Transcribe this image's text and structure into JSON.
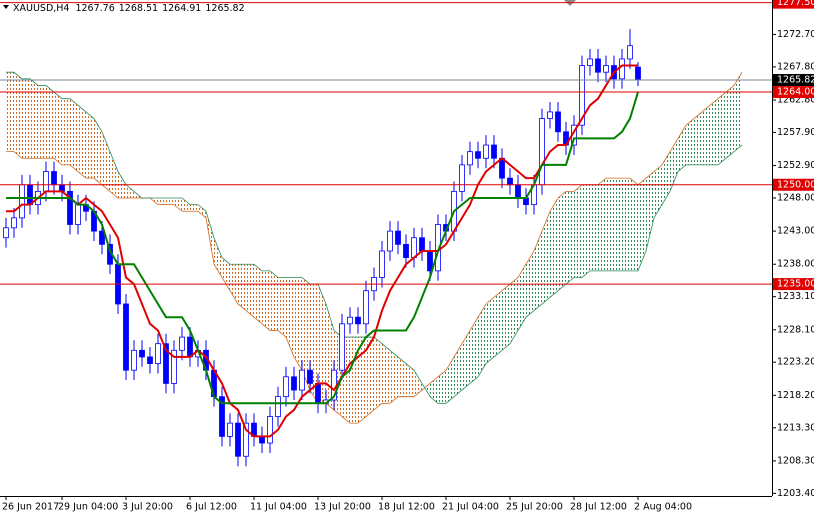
{
  "chart_data": {
    "type": "candlestick",
    "title": "XAUUSD,H4",
    "categories": [
      "26 Jun 2017",
      null,
      null,
      null,
      null,
      null,
      null,
      "29 Jun 04:00",
      null,
      null,
      null,
      null,
      null,
      null,
      null,
      "3 Jul 20:00",
      null,
      null,
      null,
      null,
      null,
      null,
      null,
      "6 Jul 12:00",
      null,
      null,
      null,
      null,
      null,
      null,
      null,
      "11 Jul 04:00",
      null,
      null,
      null,
      null,
      null,
      null,
      null,
      "13 Jul 20:00",
      null,
      null,
      null,
      null,
      null,
      null,
      null,
      "18 Jul 12:00",
      null,
      null,
      null,
      null,
      null,
      null,
      null,
      "21 Jul 04:00",
      null,
      null,
      null,
      null,
      null,
      null,
      null,
      "25 Jul 20:00",
      null,
      null,
      null,
      null,
      null,
      null,
      null,
      "28 Jul 12:00",
      null,
      null,
      null,
      null,
      null,
      null,
      null,
      "2 Aug 04:00",
      null,
      null,
      null,
      null,
      null,
      null,
      null,
      null,
      null,
      null,
      null,
      null,
      null
    ],
    "open": [
      1242,
      1243.5,
      1245,
      1250,
      1247,
      1249,
      1252,
      1250,
      1249,
      1244,
      1247,
      1246,
      1243,
      1241,
      1238,
      1232,
      1222,
      1225,
      1224,
      1223,
      1226,
      1220,
      1225,
      1227,
      1224,
      1225,
      1222,
      1218,
      1212,
      1214,
      1209,
      1214,
      1212,
      1211,
      1215,
      1218,
      1221,
      1219,
      1222,
      1220,
      1217,
      1217.5,
      1222,
      1229,
      1230,
      1229,
      1234,
      1236,
      1240,
      1243,
      1241,
      1239,
      1242,
      1240,
      1237,
      1244,
      1243,
      1249,
      1253,
      1255,
      1254,
      1256,
      1254,
      1251,
      1250,
      1248,
      1247,
      1250,
      1260,
      1261,
      1258,
      1256,
      1259,
      1268,
      1269,
      1267,
      1268,
      1266,
      1269,
      1267.76,
      null,
      null,
      null,
      null,
      null,
      null,
      null,
      null,
      null,
      null,
      null,
      null,
      null
    ],
    "high": [
      1245,
      1246.5,
      1251.5,
      1251.5,
      1250.5,
      1253.5,
      1253.5,
      1251.5,
      1250.5,
      1248.5,
      1248.5,
      1247.5,
      1244.5,
      1242.5,
      1239.5,
      1233.5,
      1226.5,
      1226.5,
      1225.5,
      1227.5,
      1227.5,
      1226.5,
      1228.5,
      1228.5,
      1226.5,
      1226.5,
      1223.5,
      1219.5,
      1215.5,
      1215.5,
      1215.5,
      1215.5,
      1213.5,
      1216.5,
      1219.5,
      1222.5,
      1222.5,
      1223.5,
      1223.5,
      1221.5,
      1219,
      1223.5,
      1230.5,
      1231.5,
      1231.5,
      1235.5,
      1237.5,
      1241.5,
      1244.5,
      1244.5,
      1242.5,
      1243.5,
      1243.5,
      1241.5,
      1245.5,
      1245.5,
      1250.5,
      1254.5,
      1256.5,
      1256.5,
      1257.5,
      1257.5,
      1255.5,
      1252.5,
      1251.5,
      1249.5,
      1251.5,
      1261.5,
      1262.5,
      1262.5,
      1259.5,
      1260.5,
      1269.5,
      1270.5,
      1270.5,
      1269.5,
      1269.5,
      1270.5,
      1273.5,
      1268.51,
      null,
      null,
      null,
      null,
      null,
      null,
      null,
      null,
      null,
      null,
      null,
      null,
      null
    ],
    "low": [
      1240.5,
      1242,
      1243.5,
      1245.5,
      1245.5,
      1247.5,
      1248.5,
      1247.5,
      1242.5,
      1242.5,
      1244.5,
      1241.5,
      1239.5,
      1236.5,
      1230.5,
      1220.5,
      1220.5,
      1222.5,
      1221.5,
      1221.5,
      1218.5,
      1218.5,
      1223.5,
      1222.5,
      1222.5,
      1220.5,
      1216.5,
      1210.5,
      1210.5,
      1207.5,
      1207.5,
      1210.5,
      1209.5,
      1209.5,
      1213.5,
      1216.5,
      1217.5,
      1217.5,
      1218.5,
      1215.5,
      1215.5,
      1216,
      1220.5,
      1227.5,
      1227.5,
      1227.5,
      1232.5,
      1234.5,
      1238.5,
      1239.5,
      1237.5,
      1237.5,
      1238.5,
      1235.5,
      1235.5,
      1241.5,
      1241.5,
      1247.5,
      1251.5,
      1252.5,
      1252.5,
      1252.5,
      1249.5,
      1248.5,
      1246.5,
      1245.5,
      1245.5,
      1248.5,
      1258.5,
      1256.5,
      1254.5,
      1254.5,
      1257.5,
      1266.5,
      1265.5,
      1265.5,
      1264.5,
      1264.5,
      1267.5,
      1264.91,
      null,
      null,
      null,
      null,
      null,
      null,
      null,
      null,
      null,
      null,
      null,
      null,
      null
    ],
    "close": [
      1243.5,
      1245,
      1250,
      1247,
      1249,
      1252,
      1250,
      1249,
      1244,
      1247,
      1246,
      1243,
      1241,
      1238,
      1232,
      1222,
      1225,
      1224,
      1223,
      1226,
      1220,
      1225,
      1227,
      1224,
      1225,
      1222,
      1218,
      1212,
      1214,
      1209,
      1214,
      1212,
      1211,
      1215,
      1218,
      1221,
      1219,
      1222,
      1220,
      1217,
      1217.5,
      1222,
      1229,
      1230,
      1229,
      1234,
      1236,
      1240,
      1243,
      1241,
      1239,
      1242,
      1240,
      1237,
      1244,
      1243,
      1249,
      1253,
      1255,
      1254,
      1256,
      1254,
      1251,
      1250,
      1248,
      1247,
      1250,
      1260,
      1261,
      1258,
      1256,
      1259,
      1268,
      1269,
      1267,
      1268,
      1266,
      1269,
      1271,
      1265.82,
      null,
      null,
      null,
      null,
      null,
      null,
      null,
      null,
      null,
      null,
      null,
      null,
      null
    ],
    "color": "#0000ff",
    "current_color": "#778899",
    "lines": [
      {
        "color": "#e00000",
        "values": [
          1246,
          1246,
          1247,
          1247,
          1248,
          1249,
          1249,
          1249,
          1248,
          1247,
          1248,
          1247,
          1246,
          1244,
          1242,
          1236,
          1235,
          1232,
          1229,
          1228,
          1225,
          1224,
          1224,
          1224,
          1225,
          1224,
          1222,
          1220,
          1217,
          1216,
          1213,
          1212,
          1212,
          1212,
          1213,
          1215,
          1216,
          1218,
          1219,
          1220,
          1220,
          1219,
          1221,
          1223,
          1224,
          1225,
          1227,
          1231,
          1234,
          1236,
          1238,
          1239,
          1240,
          1240,
          1240,
          1241,
          1243,
          1245,
          1247,
          1250,
          1252,
          1253,
          1254,
          1253,
          1252,
          1251,
          1251,
          1253,
          1255,
          1256,
          1256,
          1258,
          1260,
          1262,
          1263,
          1265,
          1267,
          1268,
          1268,
          1268,
          null,
          null,
          null,
          null,
          null,
          null,
          null,
          null,
          null,
          null,
          null,
          null,
          null
        ]
      },
      {
        "color": "#008000",
        "values": [
          1248,
          1248,
          1248,
          1248,
          1248,
          1248,
          1248,
          1248,
          1248,
          1247,
          1247,
          1246,
          1244,
          1240,
          1238,
          1238,
          1238,
          1236,
          1234,
          1232,
          1230,
          1230,
          1230,
          1228,
          1225,
          1222,
          1218,
          1217,
          1217,
          1217,
          1217,
          1217,
          1217,
          1217,
          1217,
          1217,
          1217,
          1217,
          1217,
          1217,
          1217,
          1218,
          1221,
          1222,
          1225,
          1227,
          1228,
          1228,
          1228,
          1228,
          1228,
          1230,
          1233,
          1236,
          1240,
          1243,
          1246,
          1247,
          1248,
          1248,
          1248,
          1248,
          1248,
          1248,
          1248,
          1248,
          1250,
          1253,
          1253,
          1253,
          1253,
          1257,
          1257,
          1257,
          1257,
          1257,
          1257,
          1258,
          1260,
          1264,
          null,
          null,
          null,
          null,
          null,
          null,
          null,
          null,
          null,
          null,
          null,
          null,
          null
        ]
      }
    ],
    "cloud": {
      "bull_color": "#2e8b57",
      "bear_color": "#d2691e",
      "span_a": [
        1255,
        1255,
        1254,
        1254,
        1254,
        1254,
        1254,
        1253,
        1253,
        1252,
        1251,
        1251,
        1250,
        1249,
        1248,
        1248,
        1248,
        1248,
        1248,
        1247,
        1247,
        1247,
        1246,
        1246,
        1246,
        1245,
        1238,
        1236,
        1234,
        1232,
        1231,
        1230,
        1229,
        1228,
        1228,
        1227,
        1224,
        1222,
        1219,
        1217,
        1217,
        1216,
        1215,
        1214,
        1214,
        1215,
        1216,
        1217,
        1217,
        1218,
        1218,
        1218,
        1219,
        1220,
        1221,
        1222,
        1224,
        1226,
        1228,
        1230,
        1232,
        1233,
        1234,
        1235,
        1236,
        1238,
        1240,
        1243,
        1246,
        1248,
        1249,
        1249,
        1250,
        1250,
        1250,
        1251,
        1251,
        1251,
        1251,
        1250,
        1251,
        1252,
        1253,
        1255,
        1257,
        1259,
        1260,
        1261,
        1262,
        1263,
        1264,
        1265,
        1267
      ],
      "span_b": [
        1267,
        1267,
        1266,
        1266,
        1265,
        1265,
        1264,
        1263,
        1263,
        1262,
        1261,
        1260,
        1258,
        1255,
        1252,
        1250,
        1249,
        1248,
        1248,
        1248,
        1248,
        1248,
        1248,
        1247,
        1247,
        1246,
        1242,
        1239,
        1238,
        1238,
        1238,
        1238,
        1237,
        1237,
        1236,
        1236,
        1236,
        1236,
        1235,
        1235,
        1232,
        1228,
        1227,
        1227,
        1227,
        1227,
        1227,
        1226,
        1225,
        1224,
        1223,
        1222,
        1220,
        1218,
        1217,
        1217,
        1218,
        1219,
        1220,
        1221,
        1223,
        1224,
        1225,
        1226,
        1228,
        1230,
        1231,
        1232,
        1233,
        1234,
        1235,
        1236,
        1236,
        1237,
        1237,
        1237,
        1237,
        1237,
        1237,
        1237,
        1240,
        1245,
        1247,
        1249,
        1252,
        1253,
        1253,
        1253,
        1253,
        1253,
        1254,
        1255,
        1256
      ]
    },
    "levels": [
      {
        "value": 1277.5,
        "label": "1277.50"
      },
      {
        "value": 1264,
        "label": "1264.00"
      },
      {
        "value": 1250,
        "label": "1250.00"
      },
      {
        "value": 1235,
        "label": "1235.00"
      }
    ],
    "level_color": "#e00000",
    "ylim": [
      1203.0,
      1277.9
    ],
    "yticks": [
      {
        "value": 1272.7,
        "label": "1272.70"
      },
      {
        "value": 1267.8,
        "label": "1267.80"
      },
      {
        "value": 1262.8,
        "label": "1262.80"
      },
      {
        "value": 1257.9,
        "label": "1257.90"
      },
      {
        "value": 1252.9,
        "label": "1252.90"
      },
      {
        "value": 1248.0,
        "label": "1248.00"
      },
      {
        "value": 1243.0,
        "label": "1243.00"
      },
      {
        "value": 1238.0,
        "label": "1238.00"
      },
      {
        "value": 1233.1,
        "label": "1233.10"
      },
      {
        "value": 1228.1,
        "label": "1228.10"
      },
      {
        "value": 1223.2,
        "label": "1223.20"
      },
      {
        "value": 1218.2,
        "label": "1218.20"
      },
      {
        "value": 1213.3,
        "label": "1213.30"
      },
      {
        "value": 1208.3,
        "label": "1208.30"
      },
      {
        "value": 1203.4,
        "label": "1203.40"
      }
    ],
    "grid": false
  }
}
